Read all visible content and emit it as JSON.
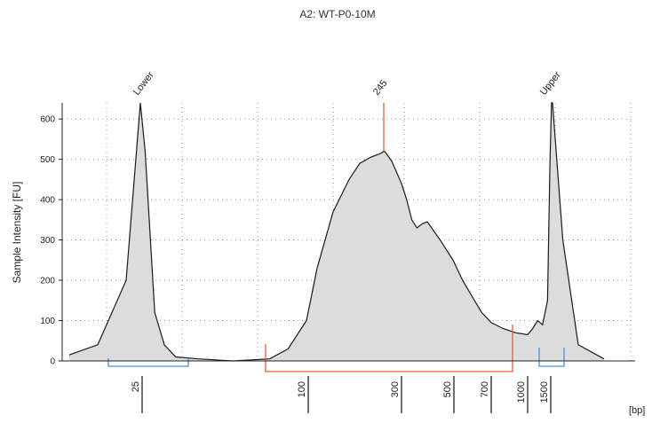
{
  "chart_data": {
    "type": "area",
    "title": "A2: WT-P0-10M",
    "ylabel": "Sample Intensity [FU]",
    "xlabel": "[bp]",
    "ylim": [
      0,
      640
    ],
    "yticks": [
      0,
      100,
      200,
      300,
      400,
      500,
      600
    ],
    "grid": true,
    "x_tick_labels": [
      "25",
      "100",
      "300",
      "500",
      "700",
      "1000",
      "1500"
    ],
    "peak_labels": [
      "Lower",
      "245",
      "Upper"
    ],
    "colors": {
      "fill": "#dcdcdc",
      "line": "#1a1a1a",
      "marker_peak": "#e8622c",
      "marker_range": "#e8622c",
      "marker_ladder": "#4a90d9"
    },
    "trace_x_bp": [
      20,
      22,
      24,
      25,
      26,
      28,
      30,
      35,
      45,
      60,
      80,
      90,
      100,
      120,
      150,
      180,
      200,
      220,
      240,
      245,
      250,
      270,
      300,
      320,
      340,
      360,
      380,
      400,
      450,
      500,
      550,
      600,
      650,
      700,
      800,
      900,
      1000,
      1100,
      1200,
      1300,
      1400,
      1450,
      1480,
      1500,
      1520,
      1550,
      1600
    ],
    "trace_y": [
      15,
      40,
      200,
      640,
      520,
      120,
      40,
      10,
      5,
      0,
      5,
      30,
      100,
      230,
      370,
      450,
      490,
      505,
      515,
      520,
      518,
      495,
      440,
      400,
      350,
      330,
      340,
      345,
      300,
      250,
      200,
      160,
      120,
      95,
      80,
      70,
      65,
      80,
      100,
      90,
      150,
      500,
      640,
      640,
      300,
      40,
      5
    ]
  }
}
